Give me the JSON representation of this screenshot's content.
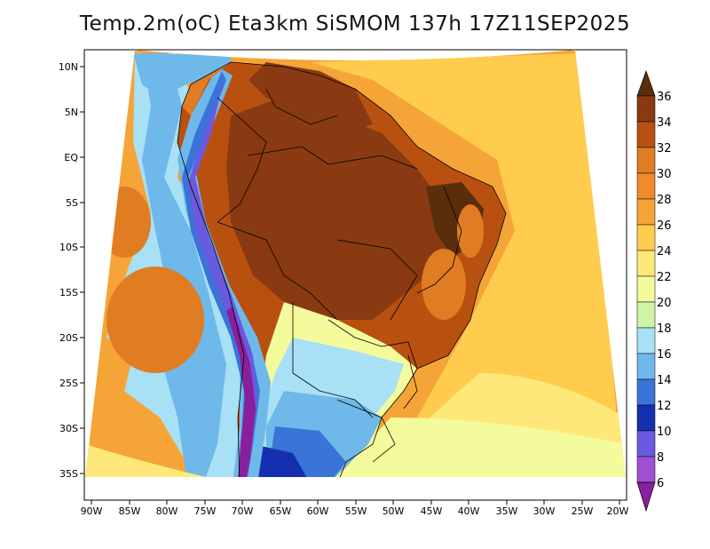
{
  "title": "Temp.2m(oC) Eta3km SiSMOM 137h 17Z11SEP2025",
  "map": {
    "lon_labels": [
      "90W",
      "85W",
      "80W",
      "75W",
      "70W",
      "65W",
      "60W",
      "55W",
      "50W",
      "45W",
      "40W",
      "35W",
      "30W",
      "25W",
      "20W"
    ],
    "lat_labels": [
      "10N",
      "5N",
      "EQ",
      "5S",
      "10S",
      "15S",
      "20S",
      "25S",
      "30S",
      "35S"
    ]
  },
  "colorbar": {
    "labels": [
      "36",
      "34",
      "32",
      "30",
      "28",
      "26",
      "24",
      "22",
      "20",
      "18",
      "16",
      "14",
      "12",
      "10",
      "8",
      "6"
    ],
    "colors": [
      "#5a2e0a",
      "#8a3a12",
      "#b8510f",
      "#e07d22",
      "#f5a537",
      "#ffcc4d",
      "#ffe87a",
      "#f3fb9c",
      "#cff3a8",
      "#a8e0f5",
      "#6fb8ea",
      "#3a74d8",
      "#1430b0",
      "#0a1a8a",
      "#6a5adf",
      "#a04fd0",
      "#8a1f9e"
    ]
  }
}
